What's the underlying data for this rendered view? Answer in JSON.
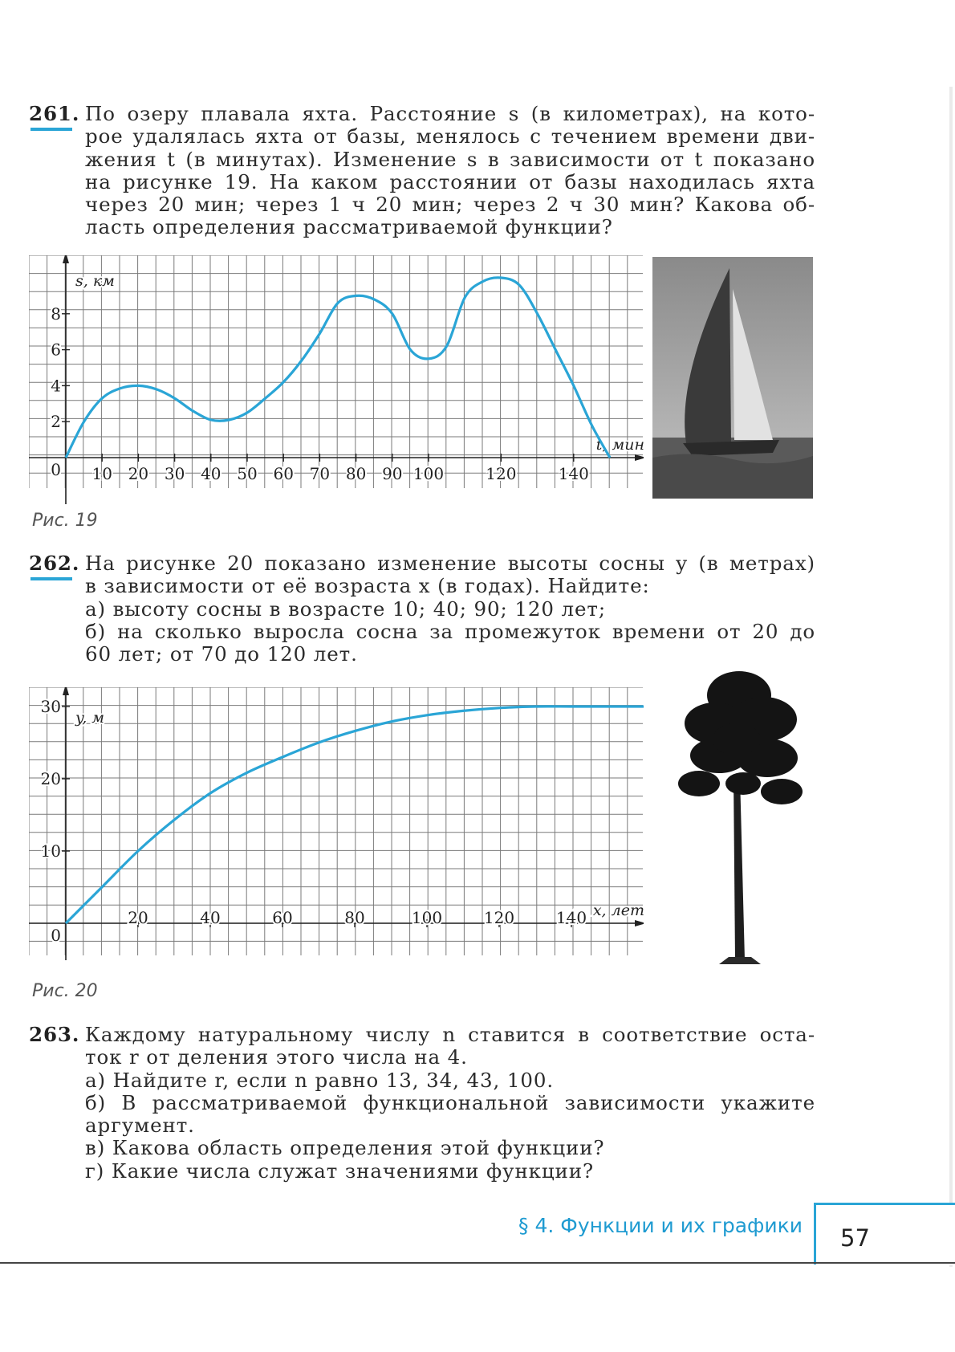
{
  "problems": [
    {
      "number": "261.",
      "lines": [
        "По озеру плавала яхта. Расстояние s (в километрах), на кото-",
        "рое удалялась яхта от базы, менялось с течением времени дви-",
        "жения t (в минутах). Изменение s в зависимости от t показано",
        "на рисунке 19. На каком расстоянии от базы находилась яхта",
        "через 20 мин; через 1 ч 20 мин; через 2 ч 30 мин? Какова об-",
        "ласть определения рассматриваемой функции?"
      ]
    },
    {
      "number": "262.",
      "lines": [
        "На рисунке 20 показано изменение высоты сосны y (в метрах)",
        "в зависимости от её возраста x (в годах). Найдите:",
        "а) высоту сосны в возрасте 10; 40; 90; 120 лет;",
        "б) на сколько выросла сосна за промежуток времени от 20 до",
        "60 лет; от 70 до 120 лет."
      ]
    },
    {
      "number": "263.",
      "lines": [
        "Каждому натуральному числу n ставится в соответствие оста-",
        "ток r от деления этого числа на 4.",
        "а) Найдите r, если n равно 13, 34, 43, 100.",
        "б) В рассматриваемой функциональной зависимости укажите",
        "аргумент.",
        "в) Какова область определения этой функции?",
        "г) Какие числа служат значениями функции?"
      ]
    }
  ],
  "captions": {
    "fig19": "Рис. 19",
    "fig20": "Рис. 20"
  },
  "chart_data": [
    {
      "type": "line",
      "xlabel": "t, мин",
      "ylabel": "s, км",
      "origin_label": "0",
      "xlim": [
        0,
        160
      ],
      "ylim": [
        0,
        10
      ],
      "x_ticks": [
        10,
        20,
        30,
        40,
        50,
        60,
        70,
        80,
        90,
        100,
        120,
        140
      ],
      "y_ticks": [
        2,
        4,
        6,
        8
      ],
      "grid": true,
      "color": "#2aa5d6",
      "x": [
        0,
        5,
        10,
        15,
        20,
        25,
        30,
        35,
        40,
        45,
        50,
        55,
        60,
        65,
        70,
        75,
        80,
        85,
        90,
        95,
        100,
        105,
        110,
        115,
        120,
        125,
        130,
        135,
        140,
        145,
        150
      ],
      "y": [
        0,
        2,
        3.3,
        3.85,
        4,
        3.8,
        3.3,
        2.6,
        2.1,
        2.1,
        2.5,
        3.3,
        4.2,
        5.4,
        6.9,
        8.6,
        9,
        8.8,
        8,
        6,
        5.5,
        6.2,
        8.9,
        9.8,
        10,
        9.6,
        8,
        6,
        4,
        1.8,
        0
      ]
    },
    {
      "type": "line",
      "xlabel": "x, лет",
      "ylabel": "y, м",
      "origin_label": "0",
      "xlim": [
        0,
        160
      ],
      "ylim": [
        0,
        30
      ],
      "x_ticks": [
        20,
        40,
        60,
        80,
        100,
        120,
        140
      ],
      "y_ticks": [
        10,
        20,
        30
      ],
      "grid": true,
      "color": "#2aa5d6",
      "x": [
        0,
        10,
        20,
        30,
        40,
        50,
        60,
        70,
        80,
        90,
        100,
        110,
        120,
        130,
        140,
        150,
        160
      ],
      "y": [
        0,
        5,
        10,
        14.3,
        18,
        20.8,
        23,
        25,
        26.6,
        27.9,
        28.8,
        29.4,
        29.8,
        30,
        30,
        30,
        30
      ]
    }
  ],
  "footer": {
    "section": "§ 4. Функции и их графики",
    "page": "57"
  },
  "images": {
    "fig19_photo": "sailboat-photo",
    "fig20_photo": "pine-tree-illustration"
  }
}
